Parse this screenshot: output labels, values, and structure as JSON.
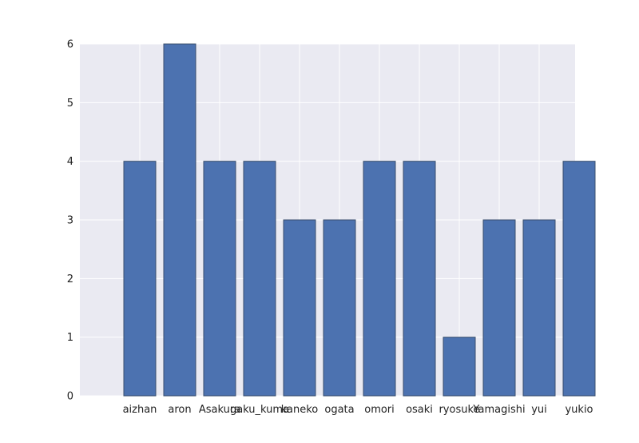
{
  "chart_data": {
    "type": "bar",
    "title": "",
    "xlabel": "",
    "ylabel": "",
    "categories": [
      "aizhan",
      "aron",
      "Asakura",
      "gaku_kuma",
      "kaneko",
      "ogata",
      "omori",
      "osaki",
      "ryosuke",
      "Yamagishi",
      "yui",
      "yukio"
    ],
    "values": [
      4,
      6,
      4,
      4,
      3,
      3,
      4,
      4,
      1,
      3,
      3,
      4
    ],
    "ylim": [
      0,
      6
    ],
    "yticks": [
      "0",
      "1",
      "2",
      "3",
      "4",
      "5",
      "6"
    ],
    "grid": true,
    "legend": "none",
    "colors": {
      "background": "#eaeaf2",
      "bar_fill": "#4c72b0",
      "bar_edge": "#3a4f6e",
      "grid": "#ffffff"
    }
  }
}
